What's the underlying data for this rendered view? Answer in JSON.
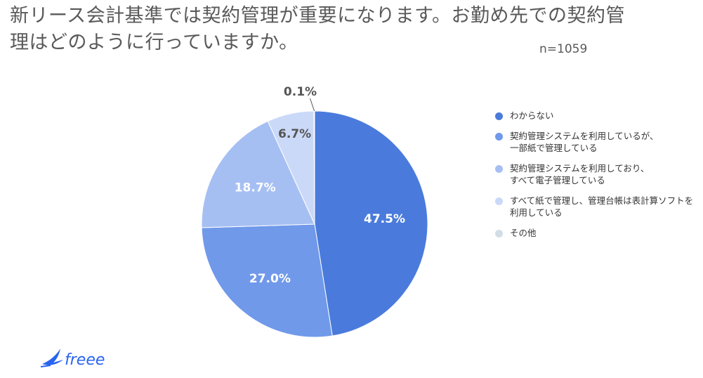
{
  "title": "新リース会計基準では契約管理が重要になります。お勤め先での契約管理はどのように行っていますか。",
  "sample_size": "n=1059",
  "logo_text": "freee",
  "chart_data": {
    "type": "pie",
    "title": "新リース会計基準では契約管理が重要になります。お勤め先での契約管理はどのように行っていますか。",
    "legend_position": "right",
    "slices": [
      {
        "label": "わからない",
        "value": 47.5,
        "display": "47.5%",
        "color": "#4a7bdc",
        "label_color": "#ffffff"
      },
      {
        "label": "契約管理システムを利用しているが、\n一部紙で管理している",
        "value": 27.0,
        "display": "27.0%",
        "color": "#7099ea",
        "label_color": "#ffffff"
      },
      {
        "label": "契約管理システムを利用しており、\nすべて電子管理している",
        "value": 18.7,
        "display": "18.7%",
        "color": "#a6bff3",
        "label_color": "#ffffff"
      },
      {
        "label": "すべて紙で管理し、管理台帳は表計算ソフトを\n利用している",
        "value": 6.7,
        "display": "6.7%",
        "color": "#cbd9f8",
        "label_color": "#555555"
      },
      {
        "label": "その他",
        "value": 0.1,
        "display": "0.1%",
        "color": "#d3dde6",
        "label_color": "#555555"
      }
    ]
  }
}
